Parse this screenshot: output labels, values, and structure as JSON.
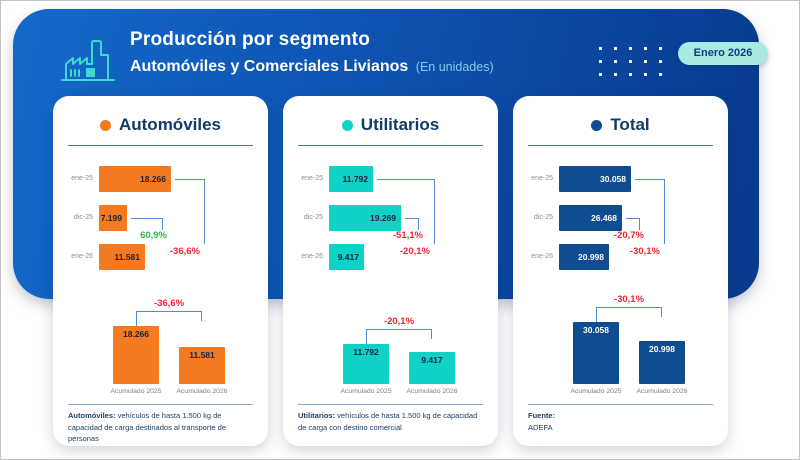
{
  "header": {
    "title_line1": "Producción por segmento",
    "title_line2": "Automóviles y Comerciales Livianos",
    "unit_note": "(En unidades)",
    "badge_label": "Enero 2026"
  },
  "chart_data": [
    {
      "type": "bar",
      "title": "Automóviles",
      "accent_color": "#F4791F",
      "value_text": "dark",
      "monthly": {
        "orientation": "horizontal",
        "categories": [
          "ene-25",
          "dic-25",
          "ene-26"
        ],
        "values": [
          18266,
          7199,
          11581
        ],
        "value_labels": [
          "18.266",
          "7.199",
          "11.581"
        ],
        "month_over_month": {
          "label": "60,9%",
          "direction": "up"
        },
        "year_over_year": {
          "label": "-36,6%",
          "direction": "down"
        }
      },
      "accumulated": {
        "orientation": "vertical",
        "categories": [
          "Acumulado 2025",
          "Acumulado 2026"
        ],
        "values": [
          18266,
          11581
        ],
        "value_labels": [
          "18.266",
          "11.581"
        ],
        "change_label": "-36,6%",
        "max_bar_height": 58
      },
      "footnote_bold": "Automóviles:",
      "footnote_text": "vehículos de hasta 1.500 kg de capacidad de carga destinados al transporte de personas"
    },
    {
      "type": "bar",
      "title": "Utilitarios",
      "accent_color": "#0FD1C5",
      "value_text": "dark",
      "monthly": {
        "orientation": "horizontal",
        "categories": [
          "ene-25",
          "dic-25",
          "ene-26"
        ],
        "values": [
          11792,
          19269,
          9417
        ],
        "value_labels": [
          "11.792",
          "19.269",
          "9.417"
        ],
        "month_over_month": {
          "label": "-51,1%",
          "direction": "down"
        },
        "year_over_year": {
          "label": "-20,1%",
          "direction": "down"
        }
      },
      "accumulated": {
        "orientation": "vertical",
        "categories": [
          "Acumulado 2025",
          "Acumulado 2026"
        ],
        "values": [
          11792,
          9417
        ],
        "value_labels": [
          "11.792",
          "9.417"
        ],
        "change_label": "-20,1%",
        "max_bar_height": 40
      },
      "footnote_bold": "Utilitarios:",
      "footnote_text": "vehículos de hasta 1.500 kg de capacidad de carga con destino comercial"
    },
    {
      "type": "bar",
      "title": "Total",
      "accent_color": "#0F4C90",
      "value_text": "light",
      "monthly": {
        "orientation": "horizontal",
        "categories": [
          "ene-25",
          "dic-25",
          "ene-26"
        ],
        "values": [
          30058,
          26468,
          20998
        ],
        "value_labels": [
          "30.058",
          "26.468",
          "20.998"
        ],
        "month_over_month": {
          "label": "-20,7%",
          "direction": "down"
        },
        "year_over_year": {
          "label": "-30,1%",
          "direction": "down"
        }
      },
      "accumulated": {
        "orientation": "vertical",
        "categories": [
          "Acumulado 2025",
          "Acumulado 2026"
        ],
        "values": [
          30058,
          20998
        ],
        "value_labels": [
          "30.058",
          "20.998"
        ],
        "change_label": "-30,1%",
        "max_bar_height": 62
      },
      "source_label": "Fuente:",
      "source_value": "ADEFA"
    }
  ],
  "colors": {
    "hero_gradient_start": "#1569C9",
    "hero_gradient_end": "#08398C",
    "positive": "#31B44B",
    "negative": "#F5232E",
    "bracket": "#4E8BD4",
    "badge_bg": "#A9EBE3",
    "badge_text": "#0A3C7C",
    "unit_note": "#7CCFEC",
    "icon": "#3FD8CE"
  }
}
